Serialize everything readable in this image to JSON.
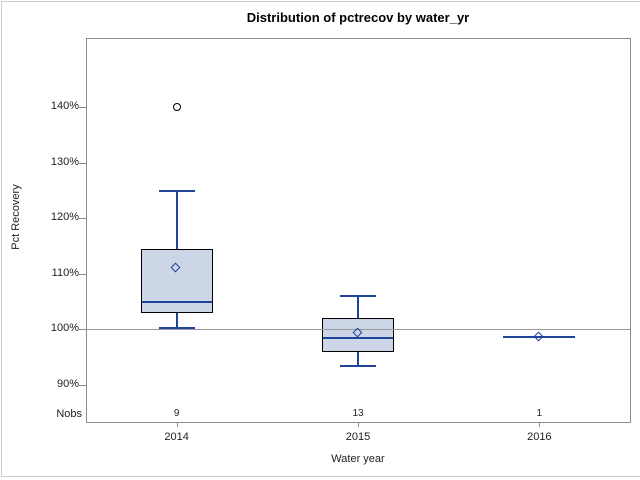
{
  "chart_data": {
    "type": "boxplot",
    "title": "Distribution of pctrecov by water_yr",
    "xlabel": "Water year",
    "ylabel": "Pct Recovery",
    "nobs_label": "Nobs",
    "categories": [
      "2014",
      "2015",
      "2016"
    ],
    "nobs": [
      "9",
      "13",
      "1"
    ],
    "y_ticks": [
      140,
      130,
      120,
      110,
      100,
      90
    ],
    "y_tick_suffix": "%",
    "ylim": [
      83.5,
      152.5
    ],
    "reference_line": 100,
    "grid": false,
    "series": [
      {
        "category": "2014",
        "n": 9,
        "whisker_low": 100.3,
        "q1": 103,
        "median": 105,
        "q3": 114.5,
        "whisker_high": 125,
        "mean": 111,
        "outliers": [
          140
        ]
      },
      {
        "category": "2015",
        "n": 13,
        "whisker_low": 93.4,
        "q1": 96,
        "median": 98.5,
        "q3": 102,
        "whisker_high": 106,
        "mean": 99.2,
        "outliers": []
      },
      {
        "category": "2016",
        "n": 1,
        "whisker_low": 98.6,
        "q1": 98.6,
        "median": 98.6,
        "q3": 98.6,
        "whisker_high": 98.6,
        "mean": 98.6,
        "outliers": []
      }
    ],
    "colors": {
      "box_fill": "#ccd6e6",
      "box_border": "#000000",
      "line_blue": "#1f4398",
      "frame_gray": "#898c8f",
      "reference_gray": "#97999b",
      "text": "#1a1a1a"
    }
  }
}
